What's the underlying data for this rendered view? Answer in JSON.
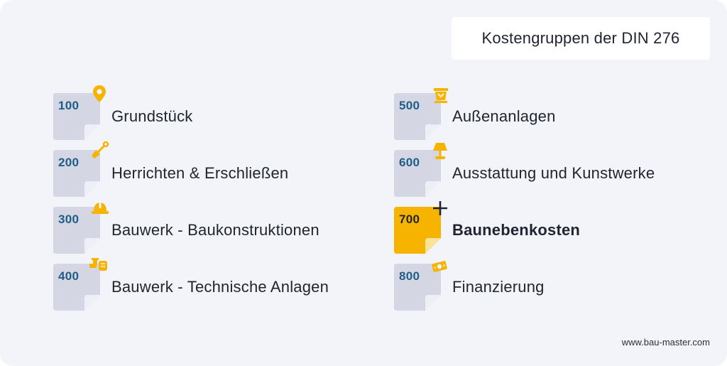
{
  "title": "Kostengruppen der DIN 276",
  "footer": "www.bau-master.com",
  "colors": {
    "accent": "#f6b400",
    "page": "#d4d7e3",
    "code": "#1f5c86",
    "text": "#1f2430",
    "background": "#f3f4f9"
  },
  "groups": [
    {
      "code": "100",
      "label": "Grundstück",
      "icon": "location-pin-icon"
    },
    {
      "code": "200",
      "label": "Herrichten & Erschließen",
      "icon": "shovel-icon"
    },
    {
      "code": "300",
      "label": "Bauwerk - Baukonstruktionen",
      "icon": "hard-hat-icon"
    },
    {
      "code": "400",
      "label": "Bauwerk - Technische Anlagen",
      "icon": "pipes-icon"
    },
    {
      "code": "500",
      "label": "Außenanlagen",
      "icon": "planter-icon"
    },
    {
      "code": "600",
      "label": "Ausstattung und Kunstwerke",
      "icon": "lamp-icon"
    },
    {
      "code": "700",
      "label": "Baunebenkosten",
      "icon": "plus-icon",
      "highlighted": true
    },
    {
      "code": "800",
      "label": "Finanzierung",
      "icon": "banknote-icon"
    }
  ]
}
